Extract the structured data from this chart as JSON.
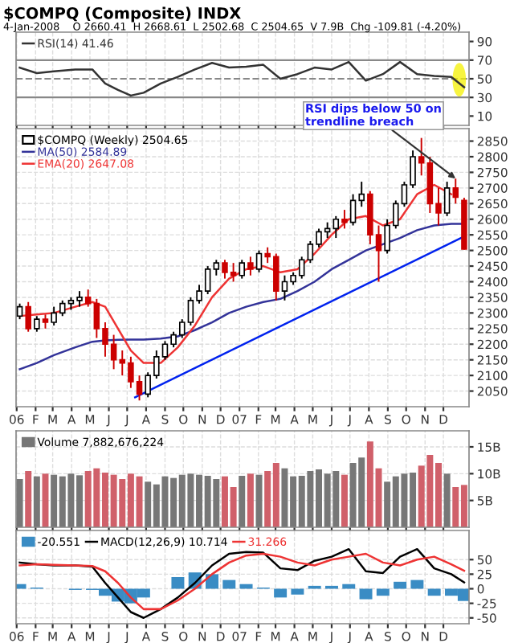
{
  "chart_data": [
    {
      "type": "line",
      "title": "$COMPQ (Composite) INDX",
      "subtitle": "4-Jan-2008    O 2660.41  H 2668.61  L 2502.68  C 2504.65  V 7.9B  Chg -109.81 (-4.20%)",
      "series": [
        {
          "name": "RSI(14) 41.46",
          "color": "#333333",
          "x": [
            "2006-01-06",
            "2006-02-03",
            "2006-03-03",
            "2006-04-07",
            "2006-05-05",
            "2006-05-26",
            "2006-06-16",
            "2006-07-07",
            "2006-07-28",
            "2006-08-25",
            "2006-09-22",
            "2006-10-20",
            "2006-11-17",
            "2006-12-15",
            "2007-01-12",
            "2007-02-09",
            "2007-03-09",
            "2007-04-06",
            "2007-05-04",
            "2007-06-01",
            "2007-06-29",
            "2007-07-27",
            "2007-08-24",
            "2007-09-21",
            "2007-10-19",
            "2007-11-16",
            "2007-12-14",
            "2008-01-04"
          ],
          "values": [
            62,
            56,
            58,
            60,
            60,
            45,
            38,
            32,
            35,
            45,
            52,
            60,
            67,
            62,
            63,
            65,
            50,
            55,
            62,
            60,
            68,
            48,
            55,
            68,
            55,
            53,
            52,
            41
          ]
        }
      ],
      "xlim": [
        "2005-12-31",
        "2008-01-12"
      ],
      "xticks": [
        {
          "value": "2006-01-01",
          "label": null
        },
        {
          "value": "2006-02-01",
          "label": null
        },
        {
          "value": "2006-03-01",
          "label": null
        },
        {
          "value": "2006-04-01",
          "label": null
        },
        {
          "value": "2006-05-01",
          "label": null
        },
        {
          "value": "2006-06-01",
          "label": null
        },
        {
          "value": "2006-07-01",
          "label": null
        },
        {
          "value": "2006-08-01",
          "label": null
        },
        {
          "value": "2006-09-01",
          "label": null
        },
        {
          "value": "2006-10-01",
          "label": null
        },
        {
          "value": "2006-11-01",
          "label": null
        },
        {
          "value": "2006-12-01",
          "label": null
        },
        {
          "value": "2007-01-01",
          "label": null
        },
        {
          "value": "2007-02-01",
          "label": null
        },
        {
          "value": "2007-03-01",
          "label": null
        },
        {
          "value": "2007-04-01",
          "label": null
        },
        {
          "value": "2007-05-01",
          "label": null
        },
        {
          "value": "2007-06-01",
          "label": null
        },
        {
          "value": "2007-07-01",
          "label": null
        },
        {
          "value": "2007-08-01",
          "label": null
        },
        {
          "value": "2007-09-01",
          "label": null
        },
        {
          "value": "2007-10-01",
          "label": null
        },
        {
          "value": "2007-11-01",
          "label": null
        },
        {
          "value": "2007-12-01",
          "label": null
        }
      ],
      "ylim": [
        0,
        100
      ],
      "yticks": [
        10,
        30,
        50,
        70,
        90
      ],
      "tick_labels": "y",
      "grid": "x",
      "legend": "top left",
      "ref_lines": [
        {
          "axis": "y",
          "value": 30,
          "color": "#888888"
        },
        {
          "axis": "y",
          "value": 70,
          "color": "#888888"
        },
        {
          "axis": "y",
          "value": 50,
          "color": "#888888",
          "line_style": "dashed"
        }
      ]
    },
    {
      "type": "candlestick",
      "annotations": [
        {
          "text": "RSI dips below 50 on\ntrendline breach",
          "x": "2007-12-21",
          "y": 2730
        }
      ],
      "series": [
        {
          "name": "$COMPQ (Weekly) 2504.65",
          "type": "candlestick",
          "color": "#cc0000",
          "x": [
            "2006-01-06",
            "2006-01-20",
            "2006-02-03",
            "2006-02-17",
            "2006-03-03",
            "2006-03-17",
            "2006-03-31",
            "2006-04-14",
            "2006-04-28",
            "2006-05-12",
            "2006-05-26",
            "2006-06-09",
            "2006-06-23",
            "2006-07-07",
            "2006-07-21",
            "2006-08-04",
            "2006-08-18",
            "2006-09-01",
            "2006-09-15",
            "2006-09-29",
            "2006-10-13",
            "2006-10-27",
            "2006-11-10",
            "2006-11-24",
            "2006-12-08",
            "2006-12-22",
            "2007-01-05",
            "2007-01-19",
            "2007-02-02",
            "2007-02-16",
            "2007-03-02",
            "2007-03-16",
            "2007-03-30",
            "2007-04-13",
            "2007-04-27",
            "2007-05-11",
            "2007-05-25",
            "2007-06-08",
            "2007-06-22",
            "2007-07-06",
            "2007-07-20",
            "2007-08-03",
            "2007-08-17",
            "2007-08-31",
            "2007-09-14",
            "2007-09-28",
            "2007-10-12",
            "2007-10-26",
            "2007-11-09",
            "2007-11-23",
            "2007-12-07",
            "2007-12-21",
            "2008-01-04"
          ],
          "ohlc": [
            [
              2290,
              2330,
              2280,
              2320
            ],
            [
              2320,
              2335,
              2240,
              2250
            ],
            [
              2250,
              2290,
              2240,
              2280
            ],
            [
              2280,
              2295,
              2250,
              2270
            ],
            [
              2270,
              2320,
              2260,
              2300
            ],
            [
              2300,
              2340,
              2290,
              2330
            ],
            [
              2330,
              2350,
              2310,
              2340
            ],
            [
              2340,
              2370,
              2320,
              2350
            ],
            [
              2350,
              2375,
              2320,
              2330
            ],
            [
              2330,
              2345,
              2220,
              2250
            ],
            [
              2250,
              2270,
              2160,
              2200
            ],
            [
              2200,
              2230,
              2120,
              2150
            ],
            [
              2150,
              2180,
              2100,
              2140
            ],
            [
              2140,
              2160,
              2060,
              2080
            ],
            [
              2080,
              2100,
              2020,
              2040
            ],
            [
              2040,
              2110,
              2030,
              2100
            ],
            [
              2100,
              2180,
              2090,
              2160
            ],
            [
              2160,
              2210,
              2150,
              2200
            ],
            [
              2200,
              2240,
              2190,
              2230
            ],
            [
              2230,
              2280,
              2220,
              2270
            ],
            [
              2270,
              2350,
              2260,
              2340
            ],
            [
              2340,
              2390,
              2330,
              2370
            ],
            [
              2370,
              2450,
              2360,
              2440
            ],
            [
              2440,
              2470,
              2420,
              2460
            ],
            [
              2460,
              2470,
              2410,
              2430
            ],
            [
              2430,
              2460,
              2400,
              2420
            ],
            [
              2420,
              2470,
              2410,
              2460
            ],
            [
              2460,
              2480,
              2420,
              2440
            ],
            [
              2440,
              2500,
              2430,
              2490
            ],
            [
              2490,
              2510,
              2460,
              2480
            ],
            [
              2480,
              2490,
              2340,
              2370
            ],
            [
              2370,
              2420,
              2340,
              2400
            ],
            [
              2400,
              2430,
              2390,
              2420
            ],
            [
              2420,
              2480,
              2410,
              2470
            ],
            [
              2470,
              2530,
              2460,
              2520
            ],
            [
              2520,
              2570,
              2510,
              2560
            ],
            [
              2560,
              2590,
              2540,
              2570
            ],
            [
              2570,
              2610,
              2540,
              2600
            ],
            [
              2600,
              2630,
              2570,
              2590
            ],
            [
              2590,
              2680,
              2580,
              2660
            ],
            [
              2660,
              2720,
              2640,
              2680
            ],
            [
              2680,
              2690,
              2520,
              2550
            ],
            [
              2550,
              2580,
              2400,
              2500
            ],
            [
              2500,
              2600,
              2490,
              2580
            ],
            [
              2580,
              2660,
              2570,
              2650
            ],
            [
              2650,
              2720,
              2640,
              2710
            ],
            [
              2710,
              2820,
              2700,
              2800
            ],
            [
              2800,
              2860,
              2740,
              2780
            ],
            [
              2780,
              2800,
              2620,
              2650
            ],
            [
              2650,
              2700,
              2580,
              2620
            ],
            [
              2620,
              2720,
              2610,
              2700
            ],
            [
              2700,
              2730,
              2650,
              2670
            ],
            [
              2660.41,
              2668.61,
              2502.68,
              2504.65
            ]
          ],
          "colors": [
            "#ffffff",
            "#cc0000",
            "#ffffff",
            "#cc0000",
            "#ffffff",
            "#ffffff",
            "#ffffff",
            "#ffffff",
            "#cc0000",
            "#cc0000",
            "#cc0000",
            "#cc0000",
            "#cc0000",
            "#cc0000",
            "#cc0000",
            "#ffffff",
            "#ffffff",
            "#ffffff",
            "#ffffff",
            "#ffffff",
            "#ffffff",
            "#ffffff",
            "#ffffff",
            "#ffffff",
            "#cc0000",
            "#cc0000",
            "#ffffff",
            "#cc0000",
            "#ffffff",
            "#cc0000",
            "#cc0000",
            "#ffffff",
            "#ffffff",
            "#ffffff",
            "#ffffff",
            "#ffffff",
            "#ffffff",
            "#ffffff",
            "#cc0000",
            "#ffffff",
            "#ffffff",
            "#cc0000",
            "#cc0000",
            "#ffffff",
            "#ffffff",
            "#ffffff",
            "#ffffff",
            "#cc0000",
            "#cc0000",
            "#cc0000",
            "#ffffff",
            "#cc0000",
            "#cc0000"
          ]
        },
        {
          "name": "MA(50) 2584.89",
          "type": "line",
          "color": "#333399",
          "x": [
            "2006-01-06",
            "2006-02-03",
            "2006-03-03",
            "2006-04-07",
            "2006-05-05",
            "2006-05-26",
            "2006-06-16",
            "2006-07-07",
            "2006-07-28",
            "2006-08-25",
            "2006-09-22",
            "2006-10-20",
            "2006-11-17",
            "2006-12-15",
            "2007-01-12",
            "2007-02-09",
            "2007-03-09",
            "2007-04-06",
            "2007-05-04",
            "2007-06-01",
            "2007-06-29",
            "2007-07-27",
            "2007-08-24",
            "2007-09-21",
            "2007-10-19",
            "2007-11-16",
            "2007-12-14",
            "2008-01-04"
          ],
          "values": [
            2120,
            2140,
            2165,
            2190,
            2208,
            2212,
            2214,
            2215,
            2215,
            2218,
            2225,
            2245,
            2270,
            2300,
            2320,
            2335,
            2345,
            2370,
            2400,
            2440,
            2470,
            2500,
            2520,
            2540,
            2565,
            2580,
            2585,
            2585
          ]
        },
        {
          "name": "EMA(20) 2647.08",
          "type": "line",
          "color": "#ee3333",
          "x": [
            "2006-01-06",
            "2006-02-03",
            "2006-03-03",
            "2006-04-07",
            "2006-05-05",
            "2006-05-26",
            "2006-06-16",
            "2006-07-07",
            "2006-07-28",
            "2006-08-25",
            "2006-09-22",
            "2006-10-20",
            "2006-11-17",
            "2006-12-15",
            "2007-01-12",
            "2007-02-09",
            "2007-03-09",
            "2007-04-06",
            "2007-05-04",
            "2007-06-01",
            "2007-06-29",
            "2007-07-27",
            "2007-08-24",
            "2007-09-21",
            "2007-10-19",
            "2007-11-16",
            "2007-12-14"
          ],
          "values": [
            2290,
            2295,
            2300,
            2320,
            2335,
            2320,
            2250,
            2180,
            2140,
            2140,
            2190,
            2260,
            2350,
            2410,
            2440,
            2450,
            2430,
            2440,
            2490,
            2550,
            2600,
            2610,
            2580,
            2600,
            2680,
            2710,
            2680
          ]
        },
        {
          "type": "line",
          "color": "#0022ee",
          "x": [
            "2006-07-14",
            "2008-01-04"
          ],
          "values": [
            2030,
            2545
          ]
        }
      ],
      "xlim": [
        "2005-12-31",
        "2008-01-12"
      ],
      "xticks": [
        {
          "value": "2006-01-01",
          "label": "06"
        },
        {
          "value": "2006-02-01",
          "label": "F"
        },
        {
          "value": "2006-03-01",
          "label": "M"
        },
        {
          "value": "2006-04-01",
          "label": "A"
        },
        {
          "value": "2006-05-01",
          "label": "M"
        },
        {
          "value": "2006-06-01",
          "label": "J"
        },
        {
          "value": "2006-07-01",
          "label": "J"
        },
        {
          "value": "2006-08-01",
          "label": "A"
        },
        {
          "value": "2006-09-01",
          "label": "S"
        },
        {
          "value": "2006-10-01",
          "label": "O"
        },
        {
          "value": "2006-11-01",
          "label": "N"
        },
        {
          "value": "2006-12-01",
          "label": "D"
        },
        {
          "value": "2007-01-01",
          "label": "07"
        },
        {
          "value": "2007-02-01",
          "label": "F"
        },
        {
          "value": "2007-03-01",
          "label": "M"
        },
        {
          "value": "2007-04-01",
          "label": "A"
        },
        {
          "value": "2007-05-01",
          "label": "M"
        },
        {
          "value": "2007-06-01",
          "label": "J"
        },
        {
          "value": "2007-07-01",
          "label": "J"
        },
        {
          "value": "2007-08-01",
          "label": "A"
        },
        {
          "value": "2007-09-01",
          "label": "S"
        },
        {
          "value": "2007-10-01",
          "label": "O"
        },
        {
          "value": "2007-11-01",
          "label": "N"
        },
        {
          "value": "2007-12-01",
          "label": "D"
        }
      ],
      "ylim": [
        2000,
        2890
      ],
      "yticks": [
        2050,
        2100,
        2150,
        2200,
        2250,
        2300,
        2350,
        2400,
        2450,
        2500,
        2550,
        2600,
        2650,
        2700,
        2750,
        2800,
        2850
      ],
      "grid": true,
      "legend": "top left"
    },
    {
      "type": "bar",
      "series": [
        {
          "name": "Volume 7,882,676,224",
          "color": "#777777",
          "x": [
            "2006-01-06",
            "2006-01-20",
            "2006-02-03",
            "2006-02-17",
            "2006-03-03",
            "2006-03-17",
            "2006-03-31",
            "2006-04-14",
            "2006-04-28",
            "2006-05-12",
            "2006-05-26",
            "2006-06-09",
            "2006-06-23",
            "2006-07-07",
            "2006-07-21",
            "2006-08-04",
            "2006-08-18",
            "2006-09-01",
            "2006-09-15",
            "2006-09-29",
            "2006-10-13",
            "2006-10-27",
            "2006-11-10",
            "2006-11-24",
            "2006-12-08",
            "2006-12-22",
            "2007-01-05",
            "2007-01-19",
            "2007-02-02",
            "2007-02-16",
            "2007-03-02",
            "2007-03-16",
            "2007-03-30",
            "2007-04-13",
            "2007-04-27",
            "2007-05-11",
            "2007-05-25",
            "2007-06-08",
            "2007-06-22",
            "2007-07-06",
            "2007-07-20",
            "2007-08-03",
            "2007-08-17",
            "2007-08-31",
            "2007-09-14",
            "2007-09-28",
            "2007-10-12",
            "2007-10-26",
            "2007-11-09",
            "2007-11-23",
            "2007-12-07",
            "2007-12-21",
            "2008-01-04"
          ],
          "values": [
            9,
            10.5,
            9.5,
            10,
            9.8,
            9.5,
            10,
            9.7,
            10.5,
            11,
            10.2,
            9.8,
            9,
            10,
            9.5,
            8.5,
            8,
            9.5,
            9.2,
            9.8,
            10,
            9.8,
            9.6,
            9,
            9.5,
            7.5,
            9.6,
            10,
            9.8,
            10.5,
            12,
            11,
            9.5,
            9.6,
            10.5,
            10.8,
            10,
            10.5,
            9.8,
            12,
            13,
            16,
            11,
            8.5,
            9.5,
            10,
            10.2,
            11.5,
            13.5,
            12,
            10,
            7.5,
            7.9
          ],
          "colors": [
            "#777777",
            "#d0606a",
            "#777777",
            "#d0606a",
            "#777777",
            "#777777",
            "#777777",
            "#777777",
            "#d0606a",
            "#d0606a",
            "#d0606a",
            "#d0606a",
            "#d0606a",
            "#d0606a",
            "#d0606a",
            "#777777",
            "#777777",
            "#777777",
            "#777777",
            "#777777",
            "#777777",
            "#777777",
            "#777777",
            "#777777",
            "#d0606a",
            "#d0606a",
            "#777777",
            "#d0606a",
            "#777777",
            "#d0606a",
            "#d0606a",
            "#777777",
            "#777777",
            "#777777",
            "#777777",
            "#777777",
            "#777777",
            "#777777",
            "#d0606a",
            "#777777",
            "#777777",
            "#d0606a",
            "#d0606a",
            "#777777",
            "#777777",
            "#777777",
            "#777777",
            "#d0606a",
            "#d0606a",
            "#d0606a",
            "#777777",
            "#d0606a",
            "#d0606a"
          ]
        }
      ],
      "xlim": [
        "2005-12-31",
        "2008-01-12"
      ],
      "xticks": [
        {
          "value": "2006-01-01",
          "label": null
        },
        {
          "value": "2006-02-01",
          "label": null
        },
        {
          "value": "2006-03-01",
          "label": null
        },
        {
          "value": "2006-04-01",
          "label": null
        },
        {
          "value": "2006-05-01",
          "label": null
        },
        {
          "value": "2006-06-01",
          "label": null
        },
        {
          "value": "2006-07-01",
          "label": null
        },
        {
          "value": "2006-08-01",
          "label": null
        },
        {
          "value": "2006-09-01",
          "label": null
        },
        {
          "value": "2006-10-01",
          "label": null
        },
        {
          "value": "2006-11-01",
          "label": null
        },
        {
          "value": "2006-12-01",
          "label": null
        },
        {
          "value": "2007-01-01",
          "label": null
        },
        {
          "value": "2007-02-01",
          "label": null
        },
        {
          "value": "2007-03-01",
          "label": null
        },
        {
          "value": "2007-04-01",
          "label": null
        },
        {
          "value": "2007-05-01",
          "label": null
        },
        {
          "value": "2007-06-01",
          "label": null
        },
        {
          "value": "2007-07-01",
          "label": null
        },
        {
          "value": "2007-08-01",
          "label": null
        },
        {
          "value": "2007-09-01",
          "label": null
        },
        {
          "value": "2007-10-01",
          "label": null
        },
        {
          "value": "2007-11-01",
          "label": null
        },
        {
          "value": "2007-12-01",
          "label": null
        }
      ],
      "ylim": [
        0,
        18
      ],
      "yticks": [
        {
          "value": 5,
          "label": "5B"
        },
        {
          "value": 10,
          "label": "10B"
        },
        {
          "value": 15,
          "label": "15B"
        }
      ],
      "tick_labels": "y",
      "grid": true,
      "legend": "top left"
    },
    {
      "type": "line",
      "series": [
        {
          "name": "-20.551",
          "type": "bar",
          "color": "#3a8cc4",
          "x": [
            "2006-01-06",
            "2006-02-03",
            "2006-03-03",
            "2006-04-07",
            "2006-05-05",
            "2006-05-26",
            "2006-06-16",
            "2006-07-07",
            "2006-07-28",
            "2006-08-25",
            "2006-09-22",
            "2006-10-20",
            "2006-11-17",
            "2006-12-15",
            "2007-01-12",
            "2007-02-09",
            "2007-03-09",
            "2007-04-06",
            "2007-05-04",
            "2007-06-01",
            "2007-06-29",
            "2007-07-27",
            "2007-08-24",
            "2007-09-21",
            "2007-10-19",
            "2007-11-16",
            "2007-12-14",
            "2008-01-04"
          ],
          "values": [
            8,
            2,
            0,
            -2,
            -2,
            -12,
            -22,
            -25,
            -15,
            0,
            20,
            28,
            25,
            15,
            8,
            2,
            -15,
            -10,
            5,
            5,
            8,
            -18,
            -12,
            12,
            15,
            -12,
            -12,
            -21
          ]
        },
        {
          "name": "MACD(12,26,9) 10.714",
          "type": "line",
          "color": "#000000",
          "x": [
            "2006-01-06",
            "2006-02-03",
            "2006-03-03",
            "2006-04-07",
            "2006-05-05",
            "2006-05-26",
            "2006-06-16",
            "2006-07-07",
            "2006-07-28",
            "2006-08-25",
            "2006-09-22",
            "2006-10-20",
            "2006-11-17",
            "2006-12-15",
            "2007-01-12",
            "2007-02-09",
            "2007-03-09",
            "2007-04-06",
            "2007-05-04",
            "2007-06-01",
            "2007-06-29",
            "2007-07-27",
            "2007-08-24",
            "2007-09-21",
            "2007-10-19",
            "2007-11-16",
            "2007-12-14",
            "2008-01-04"
          ],
          "values": [
            45,
            42,
            40,
            40,
            38,
            10,
            -15,
            -40,
            -50,
            -35,
            -15,
            10,
            40,
            60,
            63,
            62,
            35,
            32,
            48,
            55,
            68,
            30,
            27,
            55,
            68,
            35,
            25,
            11
          ]
        },
        {
          "name": "31.266",
          "type": "line",
          "color": "#ee3333",
          "x": [
            "2006-01-06",
            "2006-02-03",
            "2006-03-03",
            "2006-04-07",
            "2006-05-05",
            "2006-05-26",
            "2006-06-16",
            "2006-07-07",
            "2006-07-28",
            "2006-08-25",
            "2006-09-22",
            "2006-10-20",
            "2006-11-17",
            "2006-12-15",
            "2007-01-12",
            "2007-02-09",
            "2007-03-09",
            "2007-04-06",
            "2007-05-04",
            "2007-06-01",
            "2007-06-29",
            "2007-07-27",
            "2007-08-24",
            "2007-09-21",
            "2007-10-19",
            "2007-11-16",
            "2007-12-14",
            "2008-01-04"
          ],
          "values": [
            40,
            42,
            41,
            40,
            39,
            30,
            10,
            -15,
            -35,
            -35,
            -20,
            0,
            25,
            45,
            57,
            60,
            55,
            45,
            40,
            50,
            55,
            60,
            45,
            40,
            50,
            55,
            42,
            31
          ]
        }
      ],
      "xlim": [
        "2005-12-31",
        "2008-01-12"
      ],
      "xticks": [
        {
          "value": "2006-01-01",
          "label": "06"
        },
        {
          "value": "2006-02-01",
          "label": "F"
        },
        {
          "value": "2006-03-01",
          "label": "M"
        },
        {
          "value": "2006-04-01",
          "label": "A"
        },
        {
          "value": "2006-05-01",
          "label": "M"
        },
        {
          "value": "2006-06-01",
          "label": "J"
        },
        {
          "value": "2006-07-01",
          "label": "J"
        },
        {
          "value": "2006-08-01",
          "label": "A"
        },
        {
          "value": "2006-09-01",
          "label": "S"
        },
        {
          "value": "2006-10-01",
          "label": "O"
        },
        {
          "value": "2006-11-01",
          "label": "N"
        },
        {
          "value": "2006-12-01",
          "label": "D"
        },
        {
          "value": "2007-01-01",
          "label": "07"
        },
        {
          "value": "2007-02-01",
          "label": "F"
        },
        {
          "value": "2007-03-01",
          "label": "M"
        },
        {
          "value": "2007-04-01",
          "label": "A"
        },
        {
          "value": "2007-05-01",
          "label": "M"
        },
        {
          "value": "2007-06-01",
          "label": "J"
        },
        {
          "value": "2007-07-01",
          "label": "J"
        },
        {
          "value": "2007-08-01",
          "label": "A"
        },
        {
          "value": "2007-09-01",
          "label": "S"
        },
        {
          "value": "2007-10-01",
          "label": "O"
        },
        {
          "value": "2007-11-01",
          "label": "N"
        },
        {
          "value": "2007-12-01",
          "label": "D"
        }
      ],
      "ylim": [
        -60,
        100
      ],
      "yticks": [
        -50,
        -25,
        0,
        25,
        50
      ],
      "grid": true,
      "legend": "top left"
    }
  ]
}
